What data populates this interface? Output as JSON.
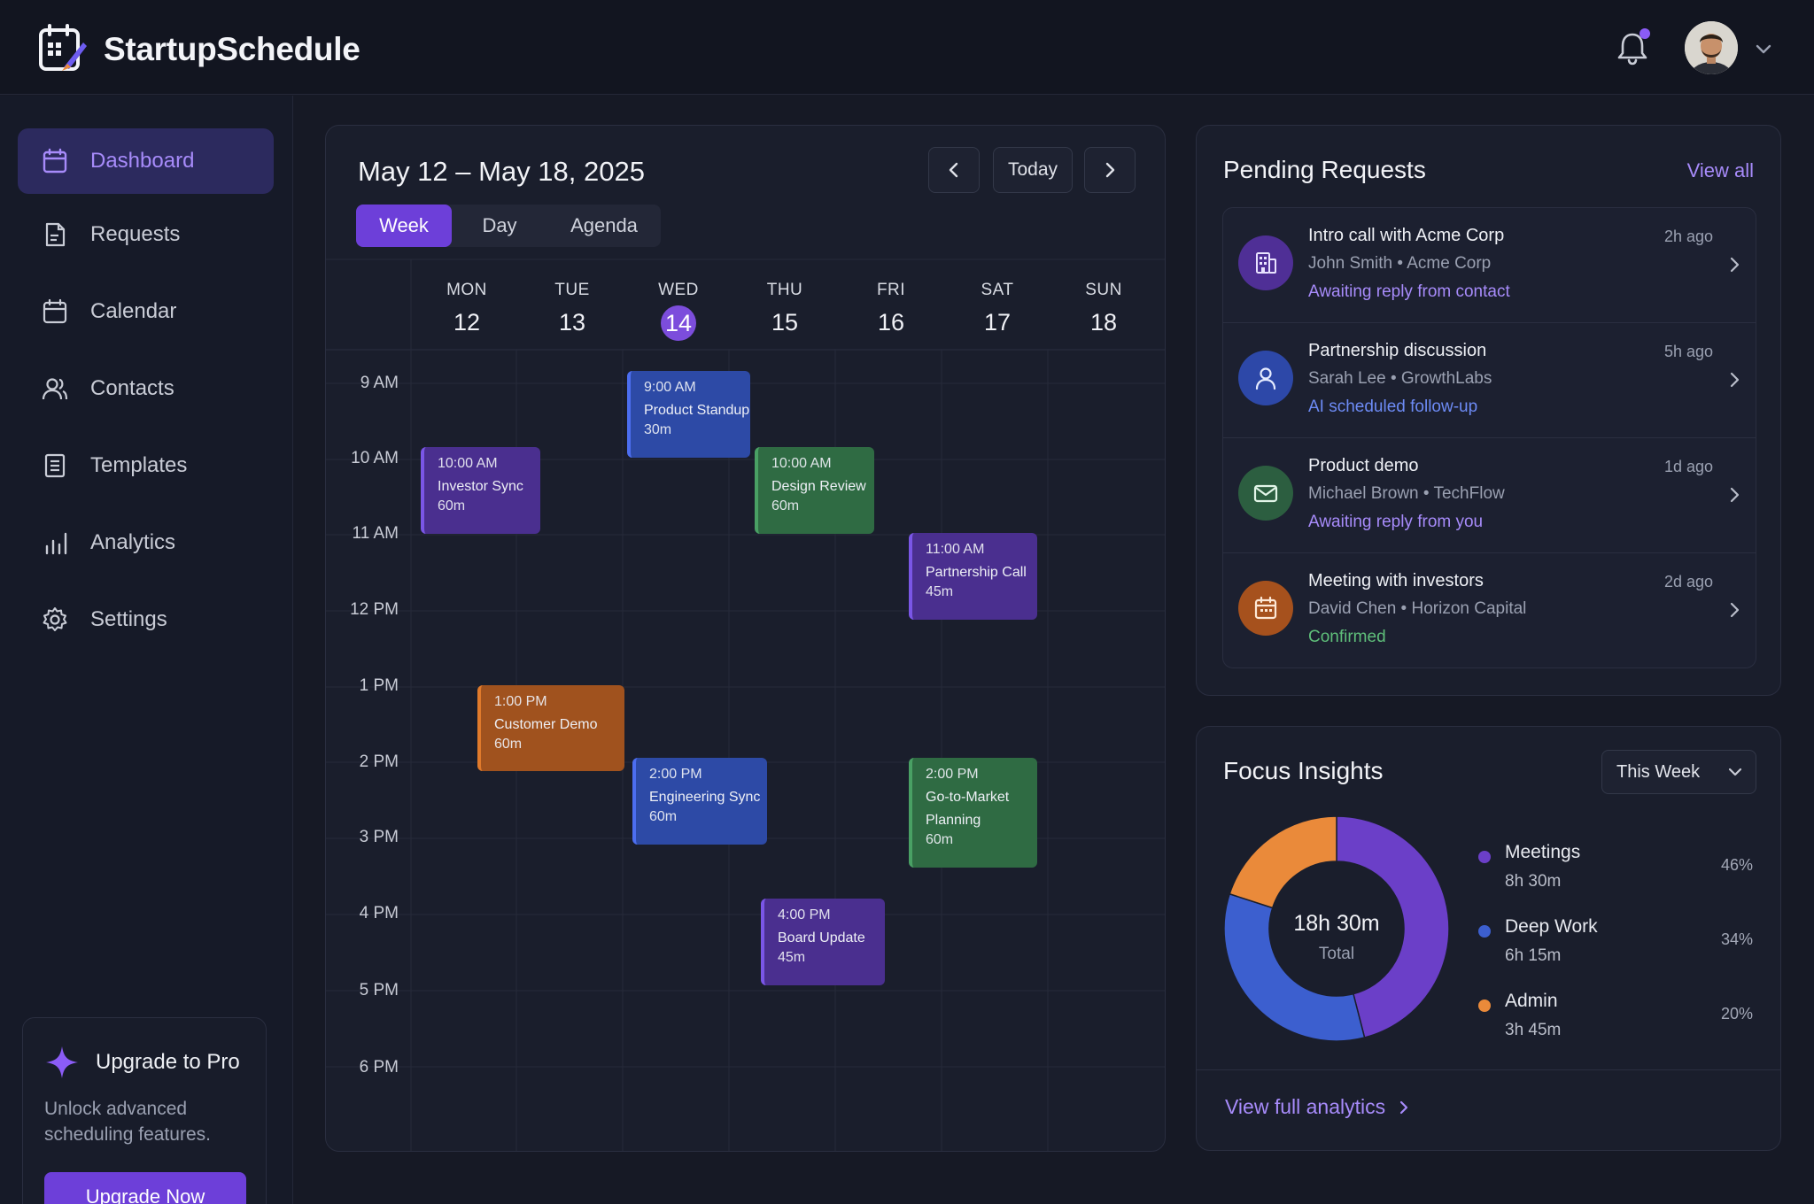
{
  "app": {
    "name": "StartupSchedule"
  },
  "sidebar": {
    "items": [
      {
        "label": "Dashboard",
        "icon": "calendar-icon",
        "active": true
      },
      {
        "label": "Requests",
        "icon": "document-icon"
      },
      {
        "label": "Calendar",
        "icon": "calendar-icon"
      },
      {
        "label": "Contacts",
        "icon": "users-icon"
      },
      {
        "label": "Templates",
        "icon": "list-document-icon"
      },
      {
        "label": "Analytics",
        "icon": "bar-chart-icon"
      },
      {
        "label": "Settings",
        "icon": "gear-icon"
      }
    ],
    "upgrade": {
      "title": "Upgrade to Pro",
      "description": "Unlock advanced scheduling features.",
      "button": "Upgrade Now"
    }
  },
  "calendar": {
    "range": "May 12 – May 18, 2025",
    "today_button": "Today",
    "tabs": [
      "Week",
      "Day",
      "Agenda"
    ],
    "active_tab": "Week",
    "days": [
      {
        "name": "MON",
        "date": "12"
      },
      {
        "name": "TUE",
        "date": "13"
      },
      {
        "name": "WED",
        "date": "14",
        "today": true
      },
      {
        "name": "THU",
        "date": "15"
      },
      {
        "name": "FRI",
        "date": "16"
      },
      {
        "name": "SAT",
        "date": "17"
      },
      {
        "name": "SUN",
        "date": "18"
      }
    ],
    "hours": [
      "9 AM",
      "10 AM",
      "11 AM",
      "12 PM",
      "1 PM",
      "2 PM",
      "3 PM",
      "4 PM",
      "5 PM",
      "6 PM"
    ],
    "events": [
      {
        "time": "9:00 AM",
        "title": "Product Standup",
        "duration": "30m",
        "color": "blue"
      },
      {
        "time": "10:00 AM",
        "title": "Investor Sync",
        "duration": "60m",
        "color": "purple"
      },
      {
        "time": "10:00 AM",
        "title": "Design Review",
        "duration": "60m",
        "color": "green"
      },
      {
        "time": "11:00 AM",
        "title": "Partnership Call",
        "duration": "45m",
        "color": "purple"
      },
      {
        "time": "1:00 PM",
        "title": "Customer Demo",
        "duration": "60m",
        "color": "orange"
      },
      {
        "time": "2:00 PM",
        "title": "Engineering Sync",
        "duration": "60m",
        "color": "blue"
      },
      {
        "time": "2:00 PM",
        "title": "Go-to-Market Planning",
        "duration": "60m",
        "color": "green"
      },
      {
        "time": "4:00 PM",
        "title": "Board Update",
        "duration": "45m",
        "color": "purple"
      }
    ]
  },
  "pending": {
    "title": "Pending Requests",
    "view_all": "View all",
    "requests": [
      {
        "title": "Intro call with Acme Corp",
        "person": "John Smith",
        "company": "Acme Corp",
        "status": "Awaiting reply from contact",
        "time": "2h ago",
        "icon": "building-icon",
        "badge_color": "#5b3aa8",
        "status_color": "#a78bfa"
      },
      {
        "title": "Partnership discussion",
        "person": "Sarah Lee",
        "company": "GrowthLabs",
        "status": "AI scheduled follow-up",
        "time": "5h ago",
        "icon": "user-icon",
        "badge_color": "#2f4db0",
        "status_color": "#6d8bf5"
      },
      {
        "title": "Product demo",
        "person": "Michael Brown",
        "company": "TechFlow",
        "status": "Awaiting reply from you",
        "time": "1d ago",
        "icon": "mail-icon",
        "badge_color": "#2f6645",
        "status_color": "#a78bfa"
      },
      {
        "title": "Meeting with investors",
        "person": "David Chen",
        "company": "Horizon Capital",
        "status": "Confirmed",
        "time": "2d ago",
        "icon": "calendar-icon",
        "badge_color": "#b05620",
        "status_color": "#5fbf7a"
      }
    ]
  },
  "focus": {
    "title": "Focus Insights",
    "period": "This Week",
    "total_value": "18h 30m",
    "total_label": "Total",
    "breakdown": [
      {
        "name": "Meetings",
        "time": "8h 30m",
        "percent_label": "46%",
        "percent": 46,
        "color": "#6b3fc8"
      },
      {
        "name": "Deep Work",
        "time": "6h 15m",
        "percent_label": "34%",
        "percent": 34,
        "color": "#3c5fcf"
      },
      {
        "name": "Admin",
        "time": "3h 45m",
        "percent_label": "20%",
        "percent": 20,
        "color": "#ea8a3a"
      }
    ],
    "view_full": "View full analytics"
  }
}
